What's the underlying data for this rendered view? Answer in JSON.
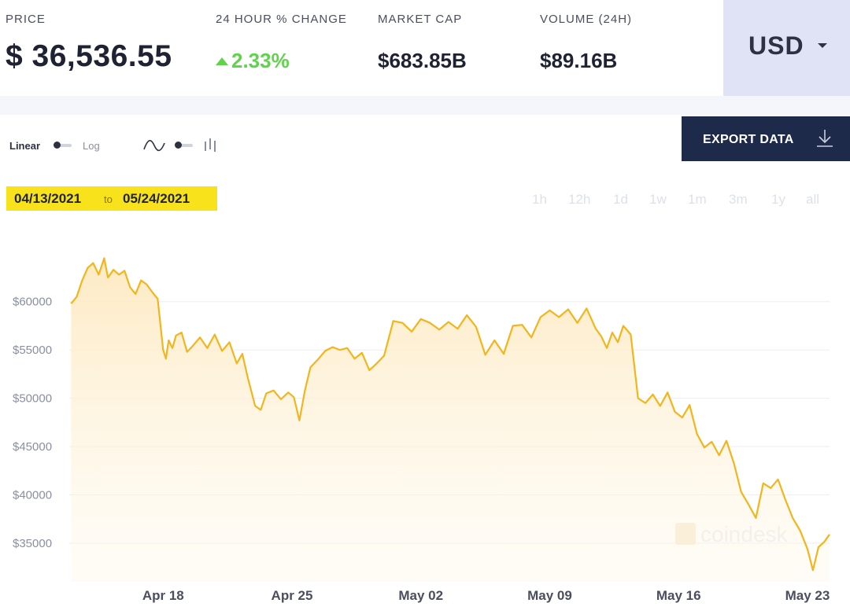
{
  "stats": {
    "price": {
      "label": "PRICE",
      "value": "$ 36,536.55"
    },
    "change": {
      "label": "24 HOUR % CHANGE",
      "value": "2.33%"
    },
    "market_cap": {
      "label": "MARKET CAP",
      "value": "$683.85B"
    },
    "volume": {
      "label": "VOLUME (24H)",
      "value": "$89.16B"
    }
  },
  "currency": {
    "label": "USD"
  },
  "toggles": {
    "linear": "Linear",
    "log": "Log"
  },
  "export": {
    "label": "EXPORT DATA"
  },
  "daterange": {
    "start": "04/13/2021",
    "to": "to",
    "end": "05/24/2021"
  },
  "ranges": [
    "1h",
    "12h",
    "1d",
    "1w",
    "1m",
    "3m",
    "1y",
    "all"
  ],
  "watermark": "coindesk",
  "colors": {
    "line": "#f2b51c",
    "accent_green": "#5fd34a",
    "highlight": "#f8e21b",
    "dark": "#1e2a4a"
  },
  "icons": {
    "line_chart": "wave-icon",
    "candles": "bars-icon",
    "download": "download-icon",
    "caret": "chevron-down-icon"
  },
  "chart_data": {
    "type": "area",
    "title": "",
    "xlabel": "",
    "ylabel": "",
    "ylim": [
      31000,
      66000
    ],
    "yticks": [
      35000,
      40000,
      45000,
      50000,
      55000,
      60000
    ],
    "ytick_labels": [
      "$35000",
      "$40000",
      "$45000",
      "$50000",
      "$55000",
      "$60000"
    ],
    "x_ticks": [
      {
        "day": 5,
        "label": "Apr 18"
      },
      {
        "day": 12,
        "label": "Apr 25"
      },
      {
        "day": 19,
        "label": "May 02"
      },
      {
        "day": 26,
        "label": "May 09"
      },
      {
        "day": 33,
        "label": "May 16"
      },
      {
        "day": 40,
        "label": "May 23"
      }
    ],
    "x_domain": [
      -0.1,
      41.2
    ],
    "grid": true,
    "series": [
      {
        "x": [
          0,
          0.3,
          0.6,
          0.9,
          1.2,
          1.5,
          1.8,
          2.0,
          2.3,
          2.6,
          2.9,
          3.2,
          3.5,
          3.8,
          4.1,
          4.4,
          4.7,
          5.0,
          5.15,
          5.3,
          5.5,
          5.7,
          6.0,
          6.3,
          6.6,
          7.0,
          7.4,
          7.8,
          8.2,
          8.6,
          9.0,
          9.3,
          9.6,
          10.0,
          10.3,
          10.6,
          11.0,
          11.4,
          11.8,
          12.1,
          12.4,
          12.7,
          13.0,
          13.4,
          13.8,
          14.2,
          14.6,
          15.0,
          15.4,
          15.8,
          16.2,
          16.6,
          17.0,
          17.5,
          18.0,
          18.5,
          19.0,
          19.5,
          20.0,
          20.5,
          21.0,
          21.5,
          22.0,
          22.5,
          23.0,
          23.5,
          24.0,
          24.5,
          25.0,
          25.5,
          26.0,
          26.5,
          27.0,
          27.5,
          28.0,
          28.5,
          28.8,
          29.1,
          29.4,
          29.7,
          30.0,
          30.4,
          30.8,
          31.2,
          31.6,
          32.0,
          32.4,
          32.8,
          33.2,
          33.6,
          34.0,
          34.4,
          34.8,
          35.2,
          35.6,
          36.0,
          36.4,
          36.8,
          37.2,
          37.6,
          38.0,
          38.4,
          38.8,
          39.2,
          39.6,
          40.0,
          40.3,
          40.6,
          40.9,
          41.2
        ],
        "y": [
          59800,
          60500,
          62200,
          63500,
          64000,
          62800,
          64500,
          62500,
          63300,
          62800,
          63200,
          61500,
          60800,
          62200,
          61800,
          61000,
          60300,
          55000,
          54100,
          56000,
          55200,
          56500,
          56800,
          54800,
          55400,
          56300,
          55200,
          56600,
          54900,
          55800,
          53600,
          54600,
          52100,
          49200,
          48800,
          50500,
          50800,
          49900,
          50600,
          50100,
          47700,
          50800,
          53200,
          54000,
          54900,
          55300,
          55000,
          55200,
          54100,
          54700,
          52900,
          53600,
          54400,
          58000,
          57800,
          56900,
          58200,
          57800,
          57100,
          57900,
          57200,
          58600,
          57400,
          54500,
          56000,
          54600,
          57500,
          57600,
          56300,
          58400,
          59100,
          58400,
          59200,
          57800,
          59300,
          57200,
          56400,
          55200,
          56800,
          55800,
          57500,
          56600,
          50000,
          49500,
          50400,
          49200,
          50600,
          48600,
          48000,
          49300,
          46300,
          44900,
          45500,
          44100,
          45600,
          43300,
          40300,
          39000,
          37600,
          41200,
          40700,
          41600,
          39500,
          37600,
          36300,
          34400,
          32200,
          34600,
          35100,
          35900
        ]
      }
    ]
  }
}
